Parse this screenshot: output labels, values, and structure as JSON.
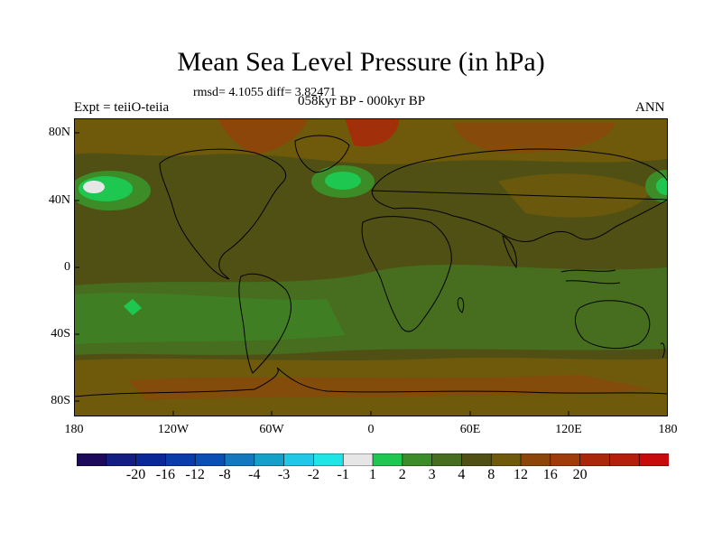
{
  "title": "Mean Sea Level Pressure (in hPa)",
  "stats": "rmsd= 4.1055 diff= 3.82471",
  "experiment": "Expt = teiiO-teiia",
  "period": "058kyr BP - 000kyr BP",
  "season": "ANN",
  "lon_ticks": [
    "180",
    "120W",
    "60W",
    "0",
    "60E",
    "120E",
    "180"
  ],
  "lat_ticks": [
    "80N",
    "40N",
    "0",
    "40S",
    "80S"
  ],
  "colorbar": {
    "colors": [
      "#1e0a5a",
      "#141e82",
      "#0a2896",
      "#0a3caa",
      "#0a50b4",
      "#1478be",
      "#14a0c8",
      "#1ec8e6",
      "#1ee6e6",
      "#e6e6e6",
      "#1ec850",
      "#3c8c28",
      "#466e1e",
      "#505014",
      "#6e5a0a",
      "#8c460a",
      "#a03c0a",
      "#aa280a",
      "#b41e0a",
      "#c80a0a"
    ],
    "labels": [
      "-20",
      "-16",
      "-12",
      "-8",
      "-4",
      "-3",
      "-2",
      "-1",
      "1",
      "2",
      "3",
      "4",
      "8",
      "12",
      "16",
      "20"
    ]
  },
  "map_colors": {
    "positive_small": "#466e1e",
    "positive_mid": "#505014",
    "positive_high": "#6e5a0a",
    "positive_higher": "#8c460a",
    "positive_highest": "#aa280a",
    "green_low": "#3c8c28",
    "bright_green": "#1ec850",
    "near_zero": "#e6e6e6"
  }
}
